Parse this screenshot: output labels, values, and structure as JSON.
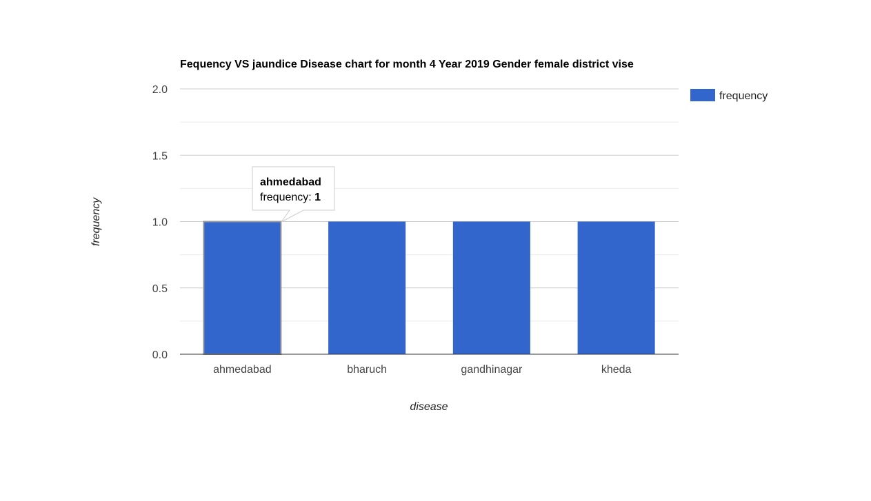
{
  "chart_data": {
    "type": "bar",
    "title": "Fequency VS jaundice Disease chart for month 4 Year 2019 Gender female district vise",
    "xlabel": "disease",
    "ylabel": "frequency",
    "categories": [
      "ahmedabad",
      "bharuch",
      "gandhinagar",
      "kheda"
    ],
    "series": [
      {
        "name": "frequency",
        "values": [
          1,
          1,
          1,
          1
        ]
      }
    ],
    "ylim": [
      0,
      2
    ],
    "yticks": [
      "0.0",
      "0.5",
      "1.0",
      "1.5",
      "2.0"
    ],
    "grid": true,
    "legend": "right",
    "colors": {
      "bar": "#3366cc",
      "grid": "#cccccc",
      "minor_grid": "#ebebeb",
      "axis": "#333333"
    },
    "tooltip": {
      "title": "ahmedabad",
      "label": "frequency: ",
      "value": "1"
    }
  }
}
